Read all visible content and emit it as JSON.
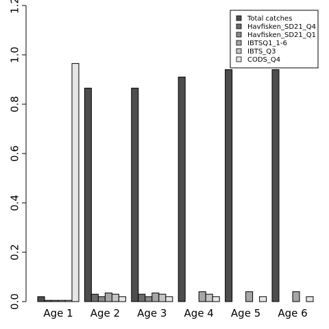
{
  "chart_data": {
    "type": "bar",
    "categories": [
      "Age 1",
      "Age 2",
      "Age 3",
      "Age 4",
      "Age 5",
      "Age 6"
    ],
    "series": [
      {
        "name": "Total catches",
        "color": "#4d4d4d",
        "values": [
          0.02,
          0.865,
          0.865,
          0.91,
          0.94,
          0.94
        ]
      },
      {
        "name": "Havfisken_SD21_Q4",
        "color": "#6b6b6b",
        "values": [
          0.005,
          0.03,
          0.03,
          0,
          0,
          0
        ]
      },
      {
        "name": "Havfisken_SD21_Q1",
        "color": "#8a8a8a",
        "values": [
          0.005,
          0.02,
          0.02,
          0,
          0,
          0
        ]
      },
      {
        "name": "IBTSQ1_1-6",
        "color": "#a6a6a6",
        "values": [
          0.005,
          0.035,
          0.035,
          0.04,
          0.04,
          0.04
        ]
      },
      {
        "name": "IBTS_Q3",
        "color": "#c4c4c4",
        "values": [
          0.005,
          0.03,
          0.03,
          0.03,
          0,
          0
        ]
      },
      {
        "name": "CODS_Q4",
        "color": "#e6e6e6",
        "values": [
          0.965,
          0.02,
          0.02,
          0.02,
          0.02,
          0.02
        ]
      }
    ],
    "ylim": [
      0,
      1.2
    ],
    "yticks": [
      "0.0",
      "0.2",
      "0.4",
      "0.6",
      "0.8",
      "1.0",
      "1.2"
    ],
    "legend_position": "top-right",
    "grid": false
  }
}
